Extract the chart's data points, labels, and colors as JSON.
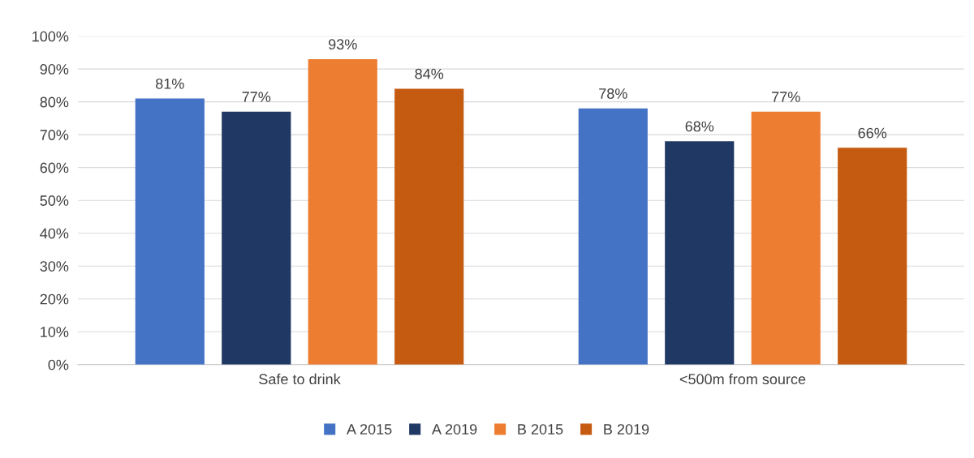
{
  "chart_data": {
    "type": "bar",
    "categories": [
      "Safe to drink",
      "<500m from source"
    ],
    "series": [
      {
        "name": "A 2015",
        "color": "#4472c4",
        "values": [
          81,
          78
        ],
        "value_labels": [
          "81%",
          "78%"
        ]
      },
      {
        "name": "A 2019",
        "color": "#203864",
        "values": [
          77,
          68
        ],
        "value_labels": [
          "77%",
          "68%"
        ]
      },
      {
        "name": "B 2015",
        "color": "#ed7d31",
        "values": [
          93,
          77
        ],
        "value_labels": [
          "93%",
          "77%"
        ]
      },
      {
        "name": "B 2019",
        "color": "#c55a11",
        "values": [
          84,
          66
        ],
        "value_labels": [
          "84%",
          "66%"
        ]
      }
    ],
    "ylim": [
      0,
      100
    ],
    "yticks": [
      {
        "value": 0,
        "label": "0%"
      },
      {
        "value": 10,
        "label": "10%"
      },
      {
        "value": 20,
        "label": "20%"
      },
      {
        "value": 30,
        "label": "30%"
      },
      {
        "value": 40,
        "label": "40%"
      },
      {
        "value": 50,
        "label": "50%"
      },
      {
        "value": 60,
        "label": "60%"
      },
      {
        "value": 70,
        "label": "70%"
      },
      {
        "value": 80,
        "label": "80%"
      },
      {
        "value": 90,
        "label": "90%"
      },
      {
        "value": 100,
        "label": "100%"
      }
    ],
    "grid": "y",
    "legend": "bottom"
  }
}
